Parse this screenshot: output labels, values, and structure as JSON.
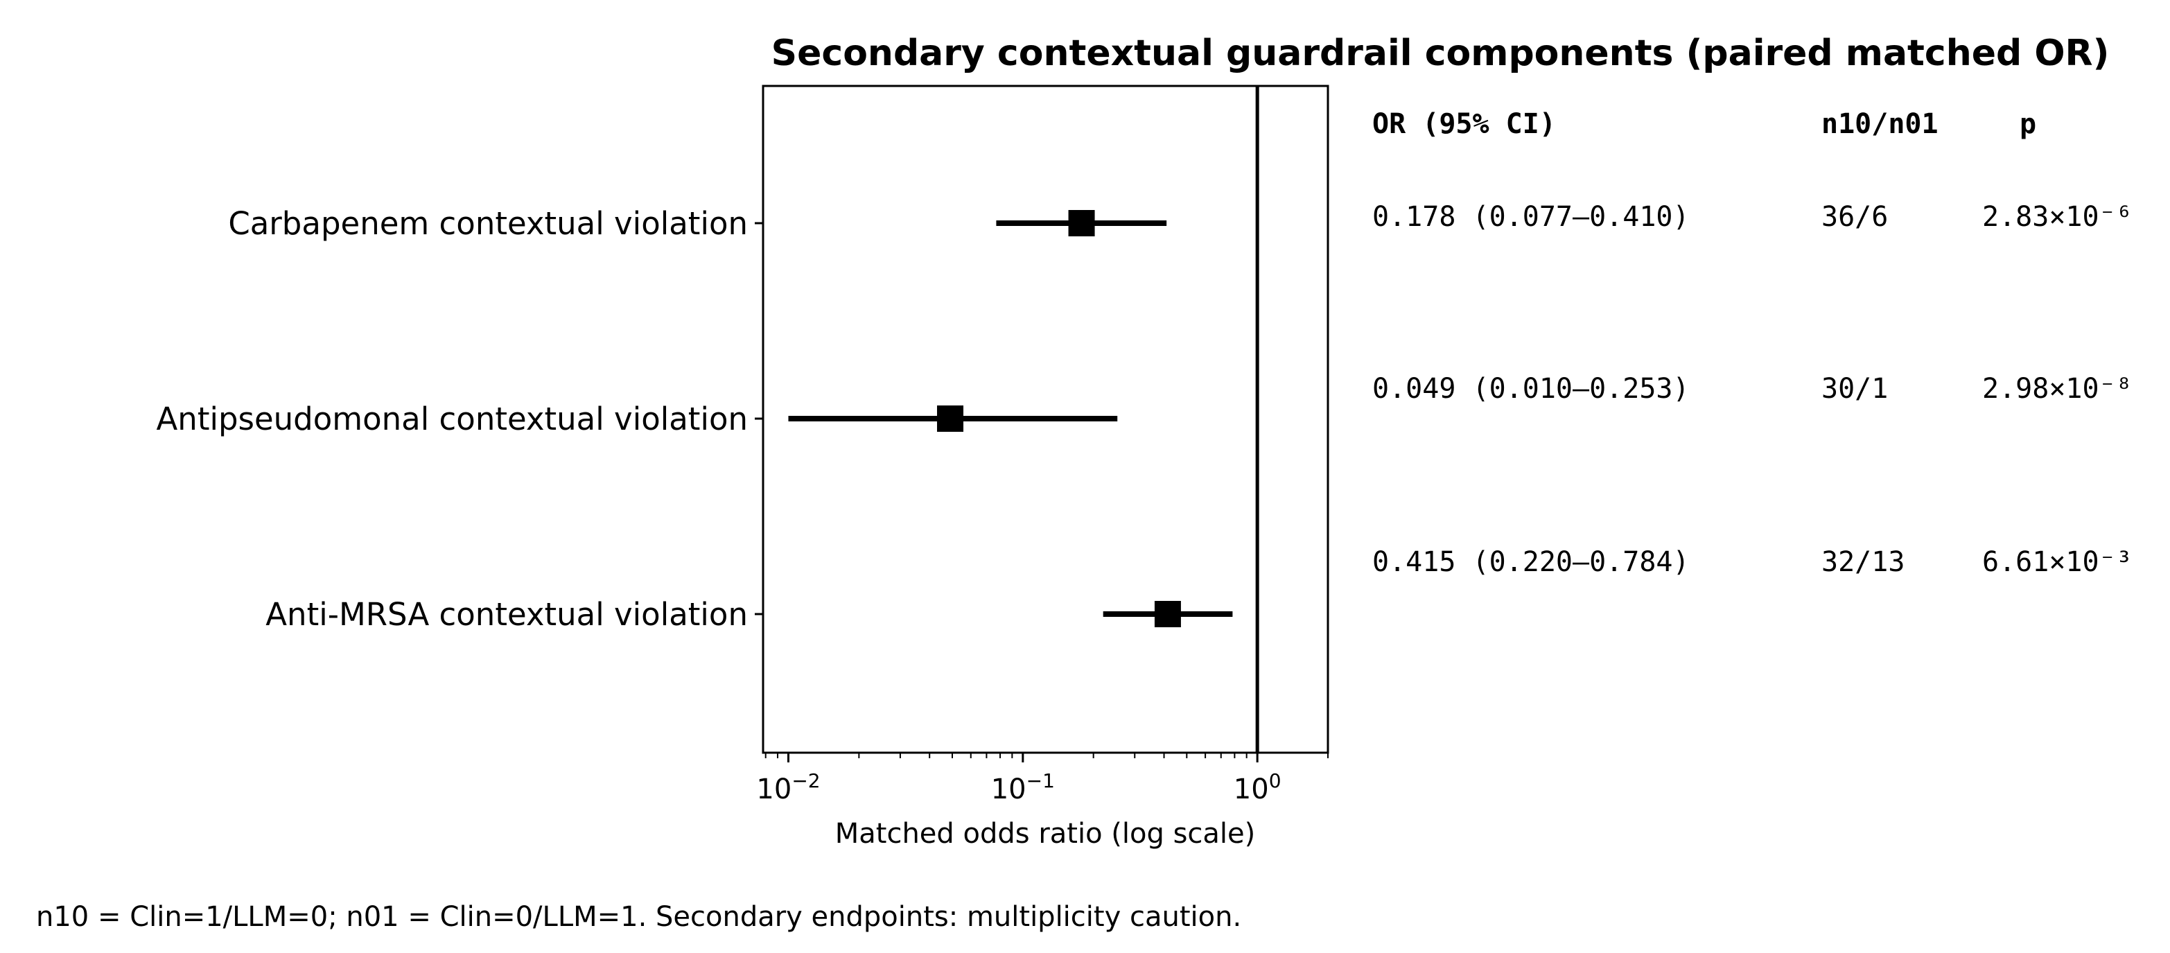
{
  "chart_data": {
    "type": "forest",
    "title": "Secondary contextual guardrail components (paired matched OR)",
    "xlabel": "Matched odds ratio (log scale)",
    "xscale": "log",
    "xlim": [
      0.0078,
      2.0
    ],
    "x_ticks": [
      0.01,
      0.1,
      1
    ],
    "reference_line": 1,
    "grid": false,
    "rows": [
      {
        "label": "Carbapenem contextual violation",
        "or": 0.178,
        "ci_low": 0.077,
        "ci_high": 0.41,
        "or_ci_text": "0.178 (0.077–0.410)",
        "n_text": "36/6",
        "p_text": "2.83×10⁻⁶"
      },
      {
        "label": "Antipseudomonal contextual violation",
        "or": 0.049,
        "ci_low": 0.01,
        "ci_high": 0.253,
        "or_ci_text": "0.049 (0.010–0.253)",
        "n_text": "30/1",
        "p_text": "2.98×10⁻⁸"
      },
      {
        "label": "Anti-MRSA contextual violation",
        "or": 0.415,
        "ci_low": 0.22,
        "ci_high": 0.784,
        "or_ci_text": "0.415 (0.220–0.784)",
        "n_text": "32/13",
        "p_text": "6.61×10⁻³"
      }
    ],
    "table_headers": {
      "or_ci": "OR (95% CI)",
      "n": "n10/n01",
      "p": "p"
    },
    "footnote": "n10 = Clin=1/LLM=0; n01 = Clin=0/LLM=1. Secondary endpoints: multiplicity caution."
  }
}
